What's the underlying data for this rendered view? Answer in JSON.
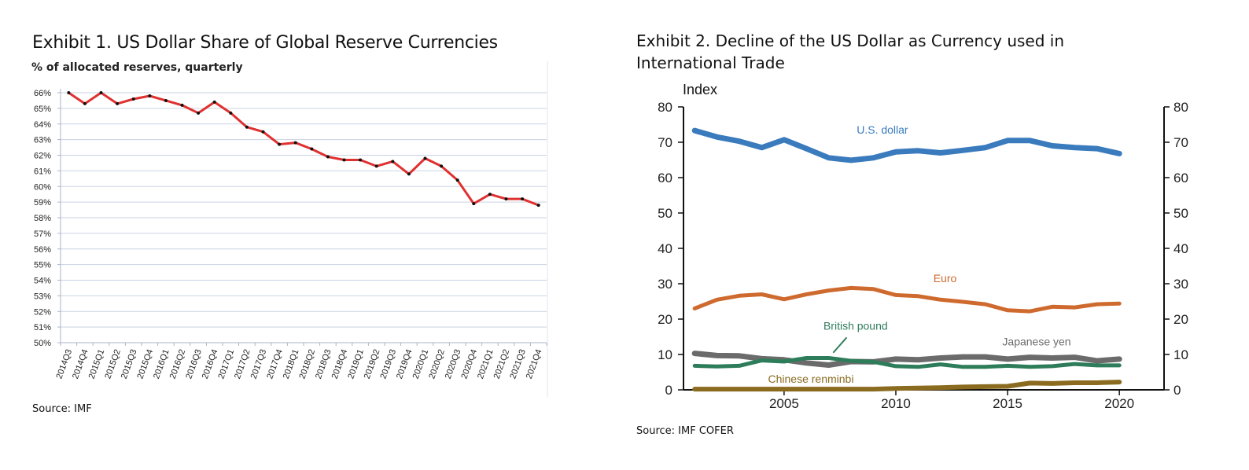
{
  "chart_data": [
    {
      "type": "line",
      "title": "Exhibit 1. US Dollar Share of Global Reserve Currencies",
      "subtitle": "% of allocated reserves, quarterly",
      "source_label": "Source: IMF",
      "categories": [
        "2014Q3",
        "2014Q4",
        "2015Q1",
        "2015Q2",
        "2015Q3",
        "2015Q4",
        "2016Q1",
        "2016Q2",
        "2016Q3",
        "2016Q4",
        "2017Q1",
        "2017Q2",
        "2017Q3",
        "2017Q4",
        "2018Q1",
        "2018Q2",
        "2018Q3",
        "2018Q4",
        "2019Q1",
        "2019Q2",
        "2019Q3",
        "2019Q4",
        "2020Q1",
        "2020Q2",
        "2020Q3",
        "2020Q4",
        "2021Q1",
        "2021Q2",
        "2021Q3",
        "2021Q4"
      ],
      "series": [
        {
          "values": [
            66.0,
            65.3,
            66.0,
            65.3,
            65.6,
            65.8,
            65.5,
            65.2,
            64.7,
            65.4,
            64.7,
            63.8,
            63.5,
            62.7,
            62.8,
            62.4,
            61.9,
            61.7,
            61.7,
            61.3,
            61.6,
            60.8,
            61.8,
            61.3,
            60.4,
            58.9,
            59.5,
            59.2,
            59.2,
            58.8
          ]
        }
      ],
      "yticks": [
        "66%",
        "65%",
        "64%",
        "63%",
        "62%",
        "61%",
        "60%",
        "59%",
        "58%",
        "57%",
        "56%",
        "55%",
        "54%",
        "53%",
        "52%",
        "51%",
        "50%"
      ],
      "ylim": [
        50,
        66
      ],
      "grid": true,
      "colors": {
        "line": "#e03030",
        "marker": "#111111",
        "grid": "#c9d3e3",
        "axis": "#aab6c8"
      }
    },
    {
      "type": "line",
      "title": "Exhibit 2. Decline of the US Dollar as Currency used in International Trade",
      "ylabel": "Index",
      "source_label": "Source: IMF COFER",
      "x": [
        2001,
        2002,
        2003,
        2004,
        2005,
        2006,
        2007,
        2008,
        2009,
        2010,
        2011,
        2012,
        2013,
        2014,
        2015,
        2016,
        2017,
        2018,
        2019,
        2020
      ],
      "xticks": [
        "2005",
        "2010",
        "2015",
        "2020"
      ],
      "yticks": [
        "0",
        "10",
        "20",
        "30",
        "40",
        "50",
        "60",
        "70",
        "80"
      ],
      "ylim": [
        0,
        80
      ],
      "xlim": [
        2000.5,
        2022
      ],
      "grid": false,
      "series": [
        {
          "name": "U.S. dollar",
          "color": "#3a7bbd",
          "values": [
            73.3,
            71.5,
            70.3,
            68.5,
            70.7,
            68.2,
            65.6,
            64.9,
            65.6,
            67.3,
            67.6,
            67.0,
            67.7,
            68.5,
            70.5,
            70.5,
            69.0,
            68.5,
            68.2,
            66.8
          ]
        },
        {
          "name": "Euro",
          "color": "#cf6a2f",
          "values": [
            23.0,
            25.5,
            26.6,
            27.0,
            25.6,
            27.0,
            28.1,
            28.8,
            28.5,
            26.8,
            26.5,
            25.5,
            24.9,
            24.2,
            22.5,
            22.2,
            23.5,
            23.3,
            24.2,
            24.4
          ]
        },
        {
          "name": "Japanese yen",
          "color": "#6b6b6b",
          "values": [
            10.3,
            9.7,
            9.6,
            8.8,
            8.5,
            7.6,
            7.0,
            8.0,
            7.9,
            8.7,
            8.5,
            9.0,
            9.3,
            9.3,
            8.7,
            9.2,
            9.0,
            9.2,
            8.2,
            8.7
          ]
        },
        {
          "name": "British pound",
          "color": "#2e7d5a",
          "values": [
            6.8,
            6.6,
            6.8,
            8.3,
            8.0,
            9.0,
            9.0,
            8.2,
            7.9,
            6.7,
            6.5,
            7.2,
            6.5,
            6.5,
            6.8,
            6.5,
            6.7,
            7.3,
            6.9,
            6.9
          ]
        },
        {
          "name": "Chinese renminbi",
          "color": "#8a6b20",
          "values": [
            0.2,
            0.2,
            0.2,
            0.2,
            0.2,
            0.2,
            0.2,
            0.2,
            0.2,
            0.4,
            0.5,
            0.6,
            0.8,
            0.9,
            1.0,
            1.9,
            1.8,
            2.0,
            2.0,
            2.2
          ]
        }
      ]
    }
  ]
}
